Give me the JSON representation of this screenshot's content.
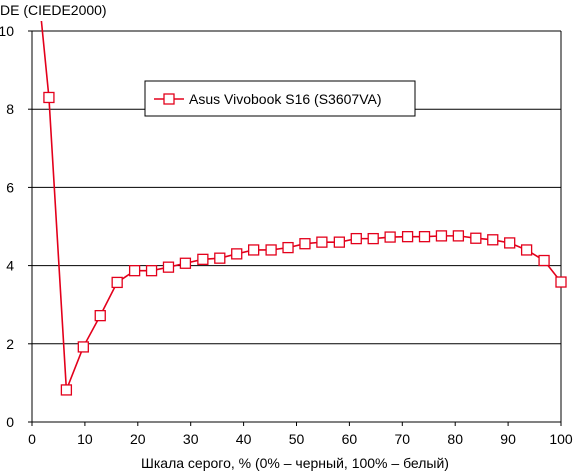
{
  "chart_data": {
    "type": "line",
    "ylabel": "DE (CIEDE2000)",
    "xlabel": "Шкала серого, % (0% – черный, 100% – белый)",
    "xlim": [
      0,
      100
    ],
    "ylim": [
      0,
      10
    ],
    "x_ticks": [
      0,
      10,
      20,
      30,
      40,
      50,
      60,
      70,
      80,
      90,
      100
    ],
    "y_ticks": [
      0,
      2,
      4,
      6,
      8,
      10
    ],
    "grid": "horizontal",
    "legend_position": "top-center",
    "series": [
      {
        "name": "Asus Vivobook S16 (S3607VA)",
        "color": "#e3001b",
        "marker": "square",
        "x": [
          1.6,
          3.2,
          6.5,
          9.7,
          12.9,
          16.1,
          19.4,
          22.6,
          25.8,
          29.0,
          32.3,
          35.5,
          38.7,
          41.9,
          45.2,
          48.4,
          51.6,
          54.8,
          58.1,
          61.3,
          64.5,
          67.7,
          71.0,
          74.2,
          77.4,
          80.6,
          83.9,
          87.1,
          90.3,
          93.5,
          96.8,
          100
        ],
        "values": [
          10.5,
          8.3,
          0.82,
          1.92,
          2.72,
          3.57,
          3.87,
          3.87,
          3.96,
          4.06,
          4.16,
          4.19,
          4.3,
          4.4,
          4.4,
          4.46,
          4.56,
          4.6,
          4.6,
          4.69,
          4.69,
          4.73,
          4.74,
          4.74,
          4.76,
          4.76,
          4.7,
          4.66,
          4.58,
          4.4,
          4.13,
          3.58
        ]
      }
    ]
  }
}
